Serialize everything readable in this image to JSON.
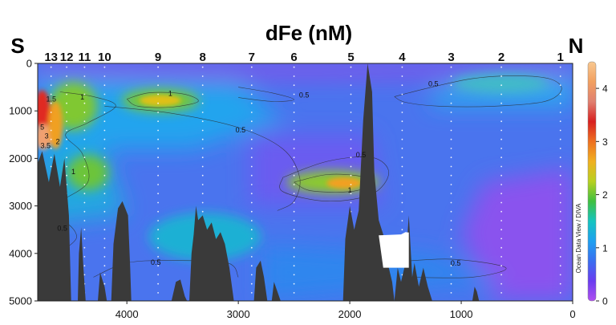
{
  "chart_data": {
    "type": "heatmap",
    "title": "dFe (nM)",
    "left_label": "S",
    "right_label": "N",
    "xlabel": "",
    "ylabel": "",
    "xlim": [
      4800,
      0
    ],
    "ylim": [
      0,
      5000
    ],
    "x_ticks": [
      {
        "value": 4000,
        "label": "4000"
      },
      {
        "value": 3000,
        "label": "3000"
      },
      {
        "value": 2000,
        "label": "2000"
      },
      {
        "value": 1000,
        "label": "1000"
      },
      {
        "value": 0,
        "label": "0"
      }
    ],
    "y_ticks": [
      {
        "value": 0,
        "label": "0"
      },
      {
        "value": 1000,
        "label": "1000"
      },
      {
        "value": 2000,
        "label": "2000"
      },
      {
        "value": 3000,
        "label": "3000"
      },
      {
        "value": 4000,
        "label": "4000"
      },
      {
        "value": 5000,
        "label": "5000"
      }
    ],
    "stations": [
      {
        "label": "13",
        "x": 4680
      },
      {
        "label": "12",
        "x": 4540
      },
      {
        "label": "11",
        "x": 4380
      },
      {
        "label": "10",
        "x": 4200
      },
      {
        "label": "9",
        "x": 3720
      },
      {
        "label": "8",
        "x": 3320
      },
      {
        "label": "7",
        "x": 2880
      },
      {
        "label": "6",
        "x": 2500
      },
      {
        "label": "5",
        "x": 1990
      },
      {
        "label": "4",
        "x": 1530
      },
      {
        "label": "3",
        "x": 1090
      },
      {
        "label": "2",
        "x": 640
      },
      {
        "label": "1",
        "x": 110
      }
    ],
    "colorbar": {
      "range": [
        0,
        4.5
      ],
      "ticks": [
        {
          "value": 0,
          "label": "0"
        },
        {
          "value": 1,
          "label": "1"
        },
        {
          "value": 2,
          "label": "2"
        },
        {
          "value": 3,
          "label": "3"
        },
        {
          "value": 4,
          "label": "4"
        }
      ],
      "colors": [
        "#b050f0",
        "#6a3cf0",
        "#3a6ef0",
        "#1ea0f0",
        "#15c4c0",
        "#40c040",
        "#b8d020",
        "#f0b020",
        "#ee7020",
        "#d82020",
        "#e08070",
        "#f2a060",
        "#f8c890"
      ]
    },
    "contour_labels": [
      {
        "text": "0.5",
        "x": 1250,
        "y": 480
      },
      {
        "text": "0.5",
        "x": 2410,
        "y": 720
      },
      {
        "text": "1",
        "x": 3610,
        "y": 680
      },
      {
        "text": "1",
        "x": 4400,
        "y": 760
      },
      {
        "text": "0.5",
        "x": 2980,
        "y": 1450
      },
      {
        "text": "1.5",
        "x": 4680,
        "y": 800
      },
      {
        "text": "0.5",
        "x": 1900,
        "y": 1980
      },
      {
        "text": "1",
        "x": 2000,
        "y": 2720
      },
      {
        "text": "1",
        "x": 4480,
        "y": 2330
      },
      {
        "text": "0.5",
        "x": 4580,
        "y": 3520
      },
      {
        "text": "0.5",
        "x": 3740,
        "y": 4240
      },
      {
        "text": "0.5",
        "x": 1050,
        "y": 4260
      },
      {
        "text": "5",
        "x": 4760,
        "y": 1390
      },
      {
        "text": "3",
        "x": 4720,
        "y": 1580
      },
      {
        "text": "2",
        "x": 4620,
        "y": 1700
      },
      {
        "text": "3.5",
        "x": 4730,
        "y": 1780
      }
    ],
    "colorbar_caption": "Ocean Data View / DIVA"
  }
}
